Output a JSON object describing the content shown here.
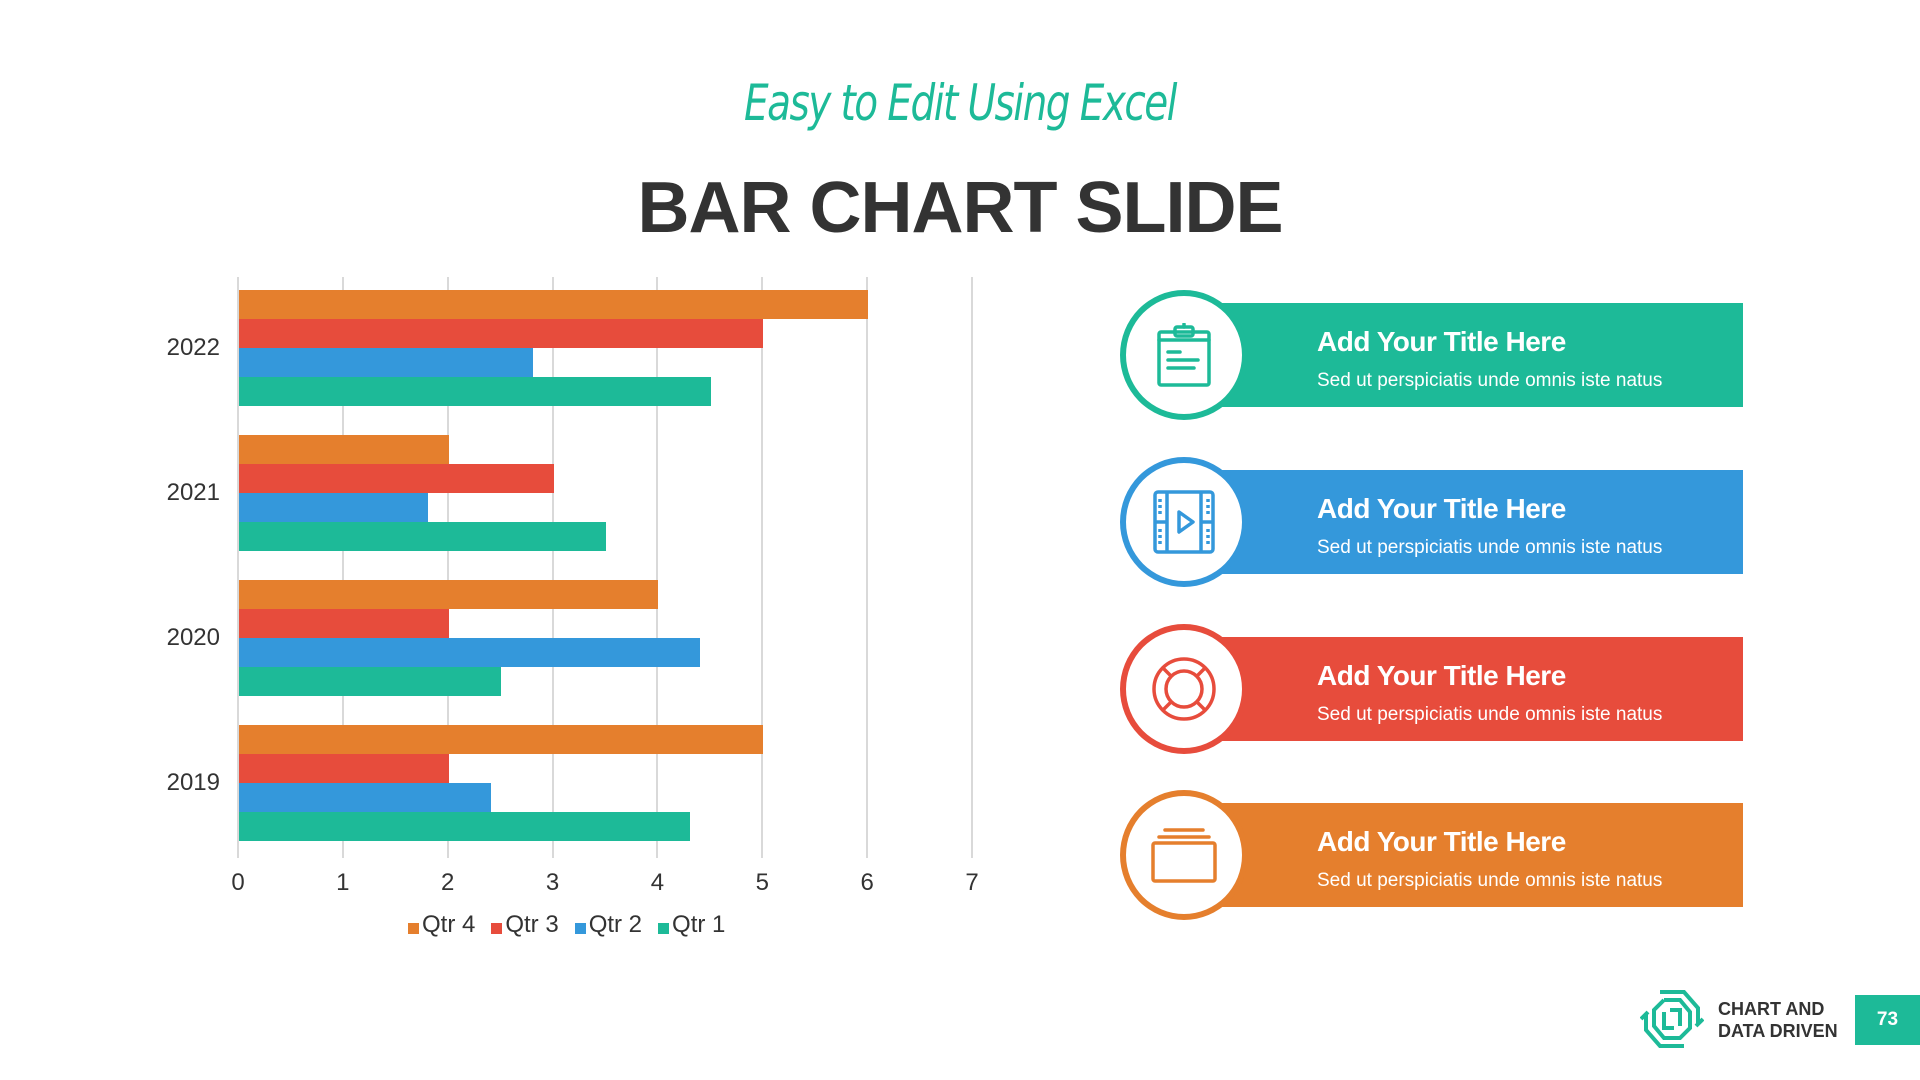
{
  "header": {
    "subtitle": "Easy to Edit Using Excel",
    "title": "BAR CHART SLIDE"
  },
  "colors": {
    "qtr4": "#e57f2d",
    "qtr3": "#e74c3c",
    "qtr2": "#3498db",
    "qtr1": "#1dba98",
    "accent": "#1dba98",
    "text": "#333333",
    "grid": "#d9d9d9"
  },
  "chart_data": {
    "type": "bar",
    "orientation": "horizontal",
    "title": "",
    "xlabel": "",
    "ylabel": "",
    "categories": [
      "2022",
      "2021",
      "2020",
      "2019"
    ],
    "series": [
      {
        "name": "Qtr 4",
        "color": "#e57f2d",
        "values": [
          6,
          2,
          4,
          5
        ]
      },
      {
        "name": "Qtr 3",
        "color": "#e74c3c",
        "values": [
          5,
          3,
          2,
          2
        ]
      },
      {
        "name": "Qtr 2",
        "color": "#3498db",
        "values": [
          2.8,
          1.8,
          4.4,
          2.4
        ]
      },
      {
        "name": "Qtr 1",
        "color": "#1dba98",
        "values": [
          4.5,
          3.5,
          2.5,
          4.3
        ]
      }
    ],
    "xlim": [
      0,
      7
    ],
    "xticks": [
      "0",
      "1",
      "2",
      "3",
      "4",
      "5",
      "6",
      "7"
    ],
    "grid": true,
    "legend_position": "bottom"
  },
  "cards": [
    {
      "title": "Add Your Title Here",
      "text": "Sed ut perspiciatis unde omnis iste natus",
      "icon": "clipboard-icon",
      "color": "#1dba98"
    },
    {
      "title": "Add Your Title Here",
      "text": "Sed ut perspiciatis unde omnis iste natus",
      "icon": "video-film-icon",
      "color": "#3498db"
    },
    {
      "title": "Add Your Title Here",
      "text": "Sed ut perspiciatis unde omnis iste natus",
      "icon": "lifebuoy-icon",
      "color": "#e74c3c"
    },
    {
      "title": "Add Your Title Here",
      "text": "Sed ut perspiciatis unde omnis iste natus",
      "icon": "folder-stack-icon",
      "color": "#e57f2d"
    }
  ],
  "footer": {
    "brand_line1": "CHART AND",
    "brand_line2": "DATA DRIVEN",
    "page_number": "73"
  }
}
